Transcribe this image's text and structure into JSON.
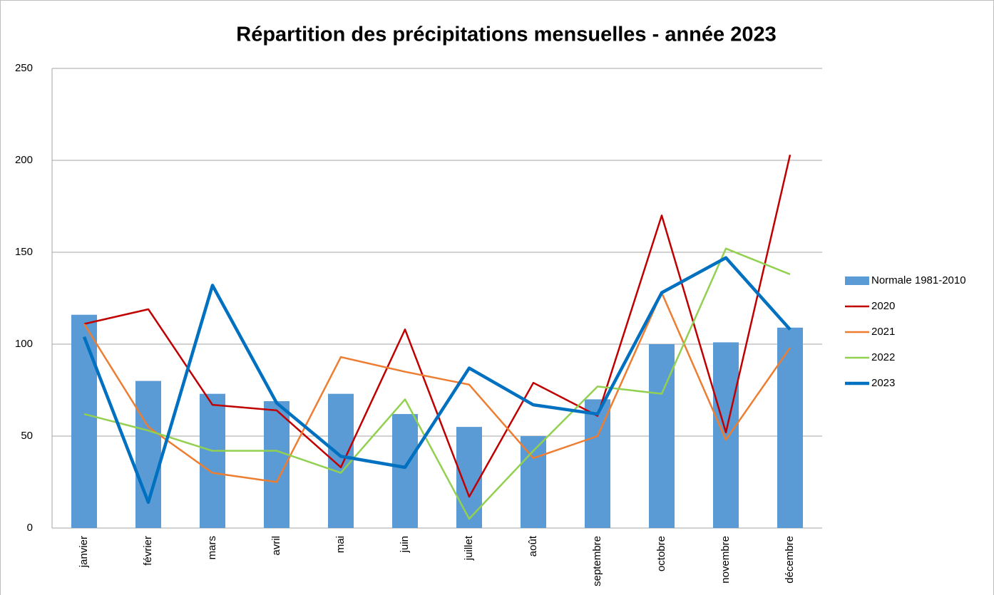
{
  "chart_data": {
    "type": "combo",
    "title": "Répartition des précipitations mensuelles - année 2023",
    "categories": [
      "janvier",
      "février",
      "mars",
      "avril",
      "mai",
      "juin",
      "juillet",
      "août",
      "septembre",
      "octobre",
      "novembre",
      "décembre"
    ],
    "series": [
      {
        "name": "Normale 1981-2010",
        "type": "bar",
        "color": "#5b9bd5",
        "values": [
          116,
          80,
          73,
          69,
          73,
          62,
          55,
          50,
          70,
          100,
          101,
          109
        ]
      },
      {
        "name": "2020",
        "type": "line",
        "color": "#c00000",
        "width": 2.5,
        "values": [
          111,
          119,
          67,
          64,
          33,
          108,
          17,
          79,
          61,
          170,
          52,
          203
        ]
      },
      {
        "name": "2021",
        "type": "line",
        "color": "#ed7d31",
        "width": 2.5,
        "values": [
          111,
          55,
          30,
          25,
          93,
          85,
          78,
          38,
          50,
          128,
          48,
          98
        ]
      },
      {
        "name": "2022",
        "type": "line",
        "color": "#92d050",
        "width": 2.5,
        "values": [
          62,
          53,
          42,
          42,
          30,
          70,
          5,
          42,
          77,
          73,
          152,
          138
        ]
      },
      {
        "name": "2023",
        "type": "line",
        "color": "#0070c0",
        "width": 4.5,
        "values": [
          104,
          14,
          132,
          68,
          39,
          33,
          87,
          67,
          62,
          128,
          147,
          108
        ]
      }
    ],
    "ylim": [
      0,
      250
    ],
    "yticks": [
      0,
      50,
      100,
      150,
      200,
      250
    ],
    "grid": true,
    "legend": "right"
  }
}
